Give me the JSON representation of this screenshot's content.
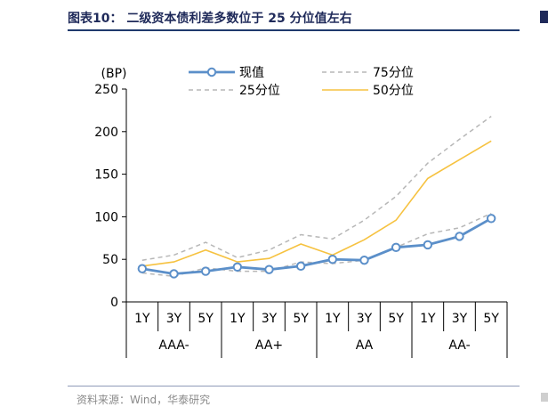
{
  "header": {
    "title": "图表10： 二级资本债利差多数位于 25 分位值左右"
  },
  "footer": {
    "source": "资料来源：Wind，华泰研究"
  },
  "chart_data": {
    "type": "line",
    "ylabel": "(BP)",
    "ylim": [
      0,
      250
    ],
    "yticks": [
      0,
      50,
      100,
      150,
      200,
      250
    ],
    "categories": [
      "1Y",
      "3Y",
      "5Y",
      "1Y",
      "3Y",
      "5Y",
      "1Y",
      "3Y",
      "5Y",
      "1Y",
      "3Y",
      "5Y"
    ],
    "groups": [
      {
        "label": "AAA-",
        "span": 3
      },
      {
        "label": "AA+",
        "span": 3
      },
      {
        "label": "AA",
        "span": 3
      },
      {
        "label": "AA-",
        "span": 3
      }
    ],
    "legend_position": "top",
    "series": [
      {
        "name": "现值",
        "style": "solid-marker",
        "color": "#5b8fc9",
        "values": [
          39,
          33,
          36,
          41,
          38,
          42,
          50,
          49,
          64,
          67,
          77,
          98
        ]
      },
      {
        "name": "75分位",
        "style": "dashed",
        "color": "#b7b7b7",
        "values": [
          49,
          55,
          70,
          52,
          61,
          79,
          74,
          96,
          124,
          163,
          191,
          218
        ]
      },
      {
        "name": "25分位",
        "style": "dashed",
        "color": "#b7b7b7",
        "values": [
          34,
          30,
          40,
          36,
          36,
          47,
          45,
          49,
          64,
          80,
          87,
          104
        ]
      },
      {
        "name": "50分位",
        "style": "solid",
        "color": "#f6c240",
        "values": [
          42,
          47,
          61,
          47,
          51,
          68,
          55,
          73,
          96,
          145,
          167,
          189
        ]
      }
    ]
  }
}
